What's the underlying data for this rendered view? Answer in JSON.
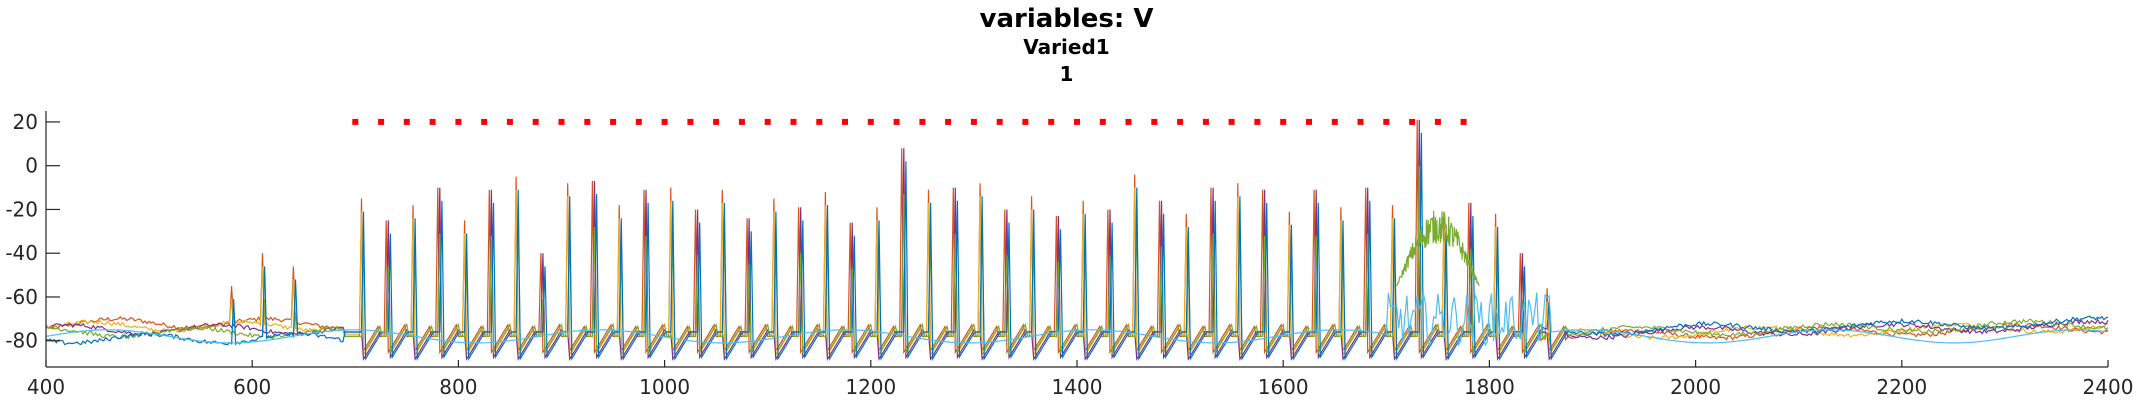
{
  "chart_data": {
    "type": "line",
    "title": "variables: V",
    "subtitle": "Varied1",
    "subtitle2": "1",
    "xlim": [
      400,
      2400
    ],
    "ylim": [
      -92,
      25
    ],
    "xticks": [
      400,
      600,
      800,
      1000,
      1200,
      1400,
      1600,
      1800,
      2000,
      2200,
      2400
    ],
    "yticks": [
      20,
      0,
      -20,
      -40,
      -60,
      -80
    ],
    "colors": [
      "#D95319",
      "#EDB120",
      "#7E2F8E",
      "#77AC30",
      "#4DBEEE",
      "#0072BD"
    ],
    "spike_train": {
      "start": 700,
      "end": 1780,
      "interval": 25,
      "y": 20,
      "marker_color": "#FF0000"
    },
    "spikes": [
      {
        "x": 580,
        "peak": -55
      },
      {
        "x": 610,
        "peak": -40
      },
      {
        "x": 640,
        "peak": -46
      },
      {
        "x": 706,
        "peak": -15
      },
      {
        "x": 731,
        "peak": -25
      },
      {
        "x": 756,
        "peak": -18
      },
      {
        "x": 781,
        "peak": -10
      },
      {
        "x": 806,
        "peak": -25
      },
      {
        "x": 831,
        "peak": -11
      },
      {
        "x": 856,
        "peak": -5
      },
      {
        "x": 881,
        "peak": -40
      },
      {
        "x": 906,
        "peak": -8
      },
      {
        "x": 931,
        "peak": -7
      },
      {
        "x": 956,
        "peak": -18
      },
      {
        "x": 981,
        "peak": -11
      },
      {
        "x": 1006,
        "peak": -10
      },
      {
        "x": 1031,
        "peak": -20
      },
      {
        "x": 1056,
        "peak": -11
      },
      {
        "x": 1081,
        "peak": -24
      },
      {
        "x": 1106,
        "peak": -15
      },
      {
        "x": 1131,
        "peak": -19
      },
      {
        "x": 1156,
        "peak": -12
      },
      {
        "x": 1181,
        "peak": -26
      },
      {
        "x": 1206,
        "peak": -19
      },
      {
        "x": 1231,
        "peak": 8
      },
      {
        "x": 1256,
        "peak": -11
      },
      {
        "x": 1281,
        "peak": -10
      },
      {
        "x": 1306,
        "peak": -8
      },
      {
        "x": 1331,
        "peak": -20
      },
      {
        "x": 1356,
        "peak": -14
      },
      {
        "x": 1381,
        "peak": -23
      },
      {
        "x": 1406,
        "peak": -16
      },
      {
        "x": 1431,
        "peak": -20
      },
      {
        "x": 1456,
        "peak": -4
      },
      {
        "x": 1481,
        "peak": -16
      },
      {
        "x": 1506,
        "peak": -22
      },
      {
        "x": 1531,
        "peak": -10
      },
      {
        "x": 1556,
        "peak": -8
      },
      {
        "x": 1581,
        "peak": -11
      },
      {
        "x": 1606,
        "peak": -21
      },
      {
        "x": 1631,
        "peak": -11
      },
      {
        "x": 1656,
        "peak": -19
      },
      {
        "x": 1681,
        "peak": -10
      },
      {
        "x": 1706,
        "peak": -18
      },
      {
        "x": 1731,
        "peak": 21
      },
      {
        "x": 1756,
        "peak": -21
      },
      {
        "x": 1781,
        "peak": -17
      },
      {
        "x": 1806,
        "peak": -22
      },
      {
        "x": 1831,
        "peak": -40
      },
      {
        "x": 1856,
        "peak": -56
      }
    ],
    "burst": {
      "start": 1710,
      "end": 1790,
      "low": -55,
      "high": -20,
      "color": "#77AC30"
    },
    "baseline_end": -73
  }
}
